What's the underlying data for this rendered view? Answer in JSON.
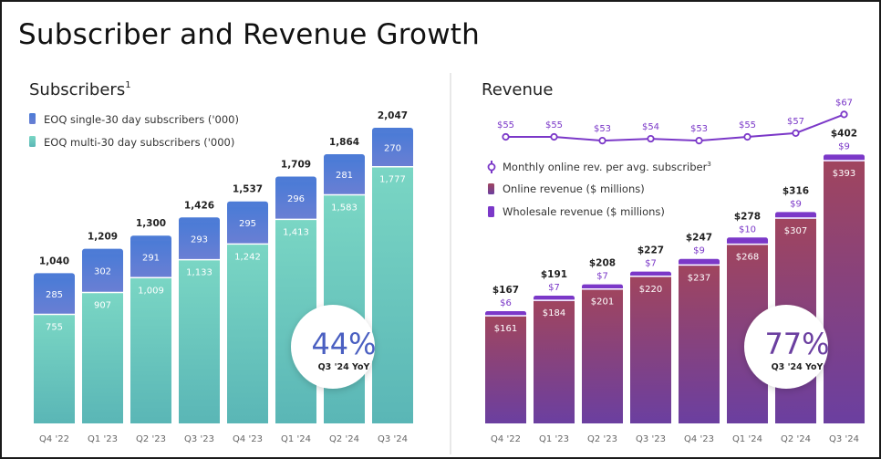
{
  "page": {
    "title": "Subscriber and Revenue Growth"
  },
  "chart_data": [
    {
      "type": "bar",
      "stacked": true,
      "title": "Subscribers",
      "title_superscript": "1",
      "categories": [
        "Q4 '22",
        "Q1 '23",
        "Q2 '23",
        "Q3 '23",
        "Q4 '23",
        "Q1 '24",
        "Q2 '24",
        "Q3 '24"
      ],
      "series": [
        {
          "name": "EOQ multi-30 day subscribers ('000)",
          "values": [
            755,
            907,
            1009,
            1133,
            1242,
            1413,
            1583,
            1777
          ],
          "color_top": "#7ad6c4",
          "color_bottom": "#5ab6b6"
        },
        {
          "name": "EOQ single-30 day subscribers ('000)",
          "values": [
            285,
            302,
            291,
            293,
            295,
            296,
            281,
            270
          ],
          "color_top": "#4b7bd6",
          "color_bottom": "#6a7fd4"
        }
      ],
      "totals": [
        1040,
        1209,
        1300,
        1426,
        1537,
        1709,
        1864,
        2047
      ],
      "total_labels": [
        "1,040",
        "1,209",
        "1,300",
        "1,426",
        "1,537",
        "1,709",
        "1,864",
        "2,047"
      ],
      "segment_labels": [
        [
          "755",
          "907",
          "1,009",
          "1,133",
          "1,242",
          "1,413",
          "1,583",
          "1,777"
        ],
        [
          "285",
          "302",
          "291",
          "293",
          "295",
          "296",
          "281",
          "270"
        ]
      ],
      "ylim": [
        0,
        2250
      ],
      "callout": {
        "value": "44%",
        "label": "Q3 '24 YoY",
        "color": "#4a5fc1"
      }
    },
    {
      "type": "bar",
      "stacked": true,
      "title": "Revenue",
      "categories": [
        "Q4 '22",
        "Q1 '23",
        "Q2 '23",
        "Q3 '23",
        "Q4 '23",
        "Q1 '24",
        "Q2 '24",
        "Q3 '24"
      ],
      "series": [
        {
          "name": "Online revenue ($ millions)",
          "values": [
            161,
            184,
            201,
            220,
            237,
            268,
            307,
            393
          ],
          "color_top": "#a0455e",
          "color_bottom": "#6b3fa0"
        },
        {
          "name": "Wholesale revenue ($ millions)",
          "values": [
            6,
            7,
            7,
            7,
            9,
            10,
            9,
            9
          ],
          "color": "#7b38c8"
        }
      ],
      "totals": [
        167,
        191,
        208,
        227,
        247,
        278,
        316,
        402
      ],
      "total_labels": [
        "$167",
        "$191",
        "$208",
        "$227",
        "$247",
        "$278",
        "$316",
        "$402"
      ],
      "online_labels": [
        "$161",
        "$184",
        "$201",
        "$220",
        "$237",
        "$268",
        "$307",
        "$393"
      ],
      "wholesale_labels": [
        "$6",
        "$7",
        "$7",
        "$7",
        "$9",
        "$10",
        "$9",
        "$9"
      ],
      "ylim": [
        0,
        440
      ],
      "line_series": {
        "name": "Monthly online rev. per avg. subscriber",
        "name_superscript": "3",
        "values": [
          55,
          55,
          53,
          54,
          53,
          55,
          57,
          67
        ],
        "labels": [
          "$55",
          "$55",
          "$53",
          "$54",
          "$53",
          "$55",
          "$57",
          "$67"
        ],
        "color": "#7b38c8"
      },
      "callout": {
        "value": "77%",
        "label": "Q3 '24 YoY",
        "color": "#6b3fa0"
      }
    }
  ]
}
